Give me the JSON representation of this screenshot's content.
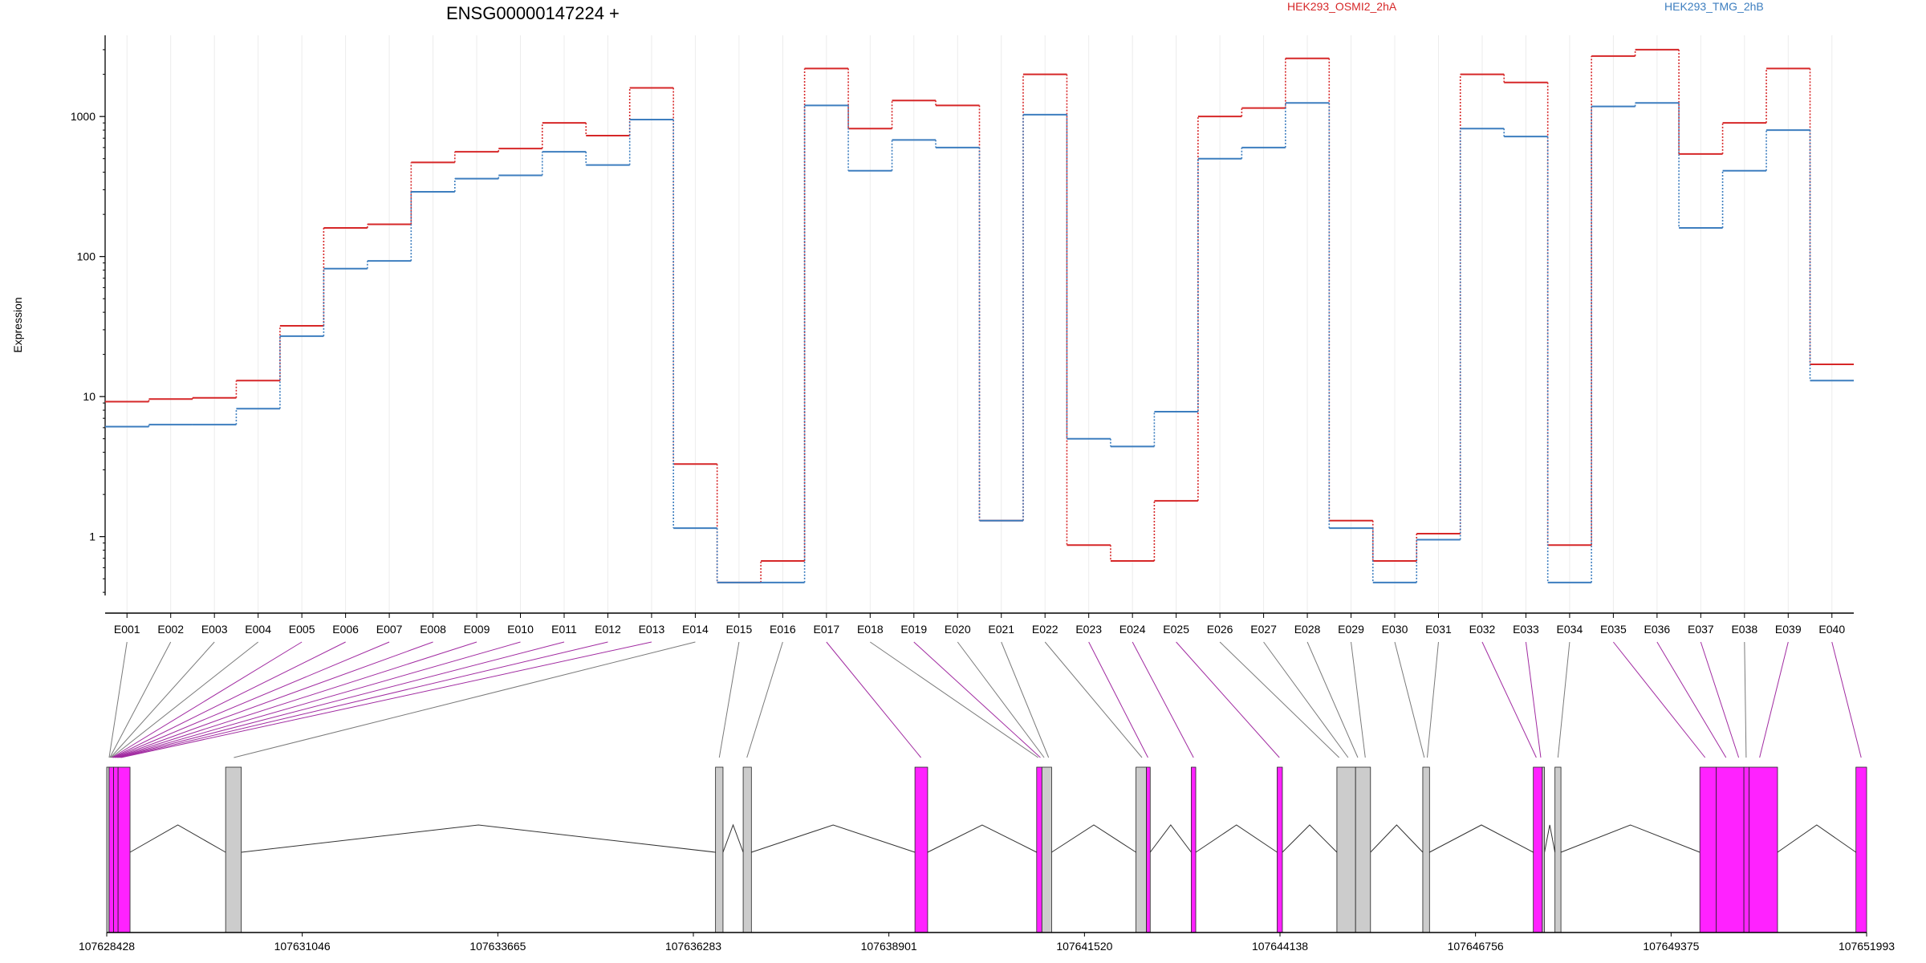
{
  "chart_data": {
    "type": "line",
    "title": "ENSG00000147224 +",
    "ylabel": "Expression",
    "yscale": "log",
    "ylim": [
      0.38,
      3800
    ],
    "yticks": [
      "1",
      "10",
      "100",
      "1000"
    ],
    "ytick_values": [
      1,
      10,
      100,
      1000
    ],
    "grid": true,
    "legend_position": "top",
    "colors": {
      "highlight": "#ff22ff",
      "plain": "#cccccc",
      "intron": "#333333"
    },
    "categories": [
      "E001",
      "E002",
      "E003",
      "E004",
      "E005",
      "E006",
      "E007",
      "E008",
      "E009",
      "E010",
      "E011",
      "E012",
      "E013",
      "E014",
      "E015",
      "E016",
      "E017",
      "E018",
      "E019",
      "E020",
      "E021",
      "E022",
      "E023",
      "E024",
      "E025",
      "E026",
      "E027",
      "E028",
      "E029",
      "E030",
      "E031",
      "E032",
      "E033",
      "E034",
      "E035",
      "E036",
      "E037",
      "E038",
      "E039",
      "E040"
    ],
    "series": [
      {
        "name": "HEK293_OSMI2_2hA",
        "color": "#d62728",
        "values": [
          9.2,
          9.6,
          9.8,
          13,
          32,
          160,
          170,
          470,
          560,
          590,
          900,
          730,
          1600,
          3.3,
          0.47,
          0.67,
          2200,
          820,
          1300,
          1200,
          1.3,
          2000,
          0.87,
          0.67,
          1.8,
          1000,
          1150,
          2600,
          1.3,
          0.67,
          1.05,
          2000,
          1750,
          0.87,
          2700,
          3000,
          540,
          900,
          2200,
          17
        ]
      },
      {
        "name": "HEK293_TMG_2hB",
        "color": "#3d7ebf",
        "values": [
          6.1,
          6.3,
          6.3,
          8.2,
          27,
          82,
          93,
          290,
          360,
          380,
          560,
          450,
          950,
          1.15,
          0.47,
          0.47,
          1200,
          410,
          680,
          600,
          1.3,
          1030,
          5.0,
          4.4,
          7.8,
          500,
          600,
          1250,
          1.15,
          0.47,
          0.95,
          820,
          720,
          0.47,
          1180,
          1250,
          160,
          410,
          800,
          13
        ]
      }
    ],
    "gene_model": {
      "coordinates": [
        "107628428",
        "107631046",
        "107633665",
        "107636283",
        "107638901",
        "107641520",
        "107644138",
        "107646756",
        "107649375",
        "107651993"
      ],
      "coord_range": [
        107628428,
        107651993
      ],
      "exons": [
        {
          "start": 107628428,
          "end": 107628460,
          "highlight": false
        },
        {
          "start": 107628460,
          "end": 107628520,
          "highlight": true
        },
        {
          "start": 107628520,
          "end": 107628580,
          "highlight": true
        },
        {
          "start": 107628580,
          "end": 107628740,
          "highlight": true
        },
        {
          "start": 107630020,
          "end": 107630230,
          "highlight": false
        },
        {
          "start": 107636580,
          "end": 107636680,
          "highlight": false
        },
        {
          "start": 107636950,
          "end": 107637060,
          "highlight": false
        },
        {
          "start": 107639250,
          "end": 107639420,
          "highlight": true
        },
        {
          "start": 107640880,
          "end": 107640950,
          "highlight": true
        },
        {
          "start": 107640950,
          "end": 107641080,
          "highlight": false
        },
        {
          "start": 107642210,
          "end": 107642350,
          "highlight": false
        },
        {
          "start": 107642350,
          "end": 107642400,
          "highlight": true
        },
        {
          "start": 107642950,
          "end": 107643010,
          "highlight": true
        },
        {
          "start": 107644100,
          "end": 107644170,
          "highlight": true
        },
        {
          "start": 107644900,
          "end": 107645150,
          "highlight": false
        },
        {
          "start": 107645150,
          "end": 107645350,
          "highlight": false
        },
        {
          "start": 107646050,
          "end": 107646140,
          "highlight": false
        },
        {
          "start": 107647530,
          "end": 107647650,
          "highlight": true
        },
        {
          "start": 107647650,
          "end": 107647680,
          "highlight": false
        },
        {
          "start": 107647820,
          "end": 107647900,
          "highlight": false
        },
        {
          "start": 107649760,
          "end": 107649980,
          "highlight": true
        },
        {
          "start": 107649980,
          "end": 107650350,
          "highlight": true
        },
        {
          "start": 107650350,
          "end": 107650420,
          "highlight": true
        },
        {
          "start": 107650420,
          "end": 107650800,
          "highlight": true
        },
        {
          "start": 107651850,
          "end": 107651993,
          "highlight": true
        }
      ],
      "exon_targets": [
        {
          "coord": 107628460,
          "highlight": false
        },
        {
          "coord": 107628470,
          "highlight": false
        },
        {
          "coord": 107628480,
          "highlight": false
        },
        {
          "coord": 107628490,
          "highlight": false
        },
        {
          "coord": 107628500,
          "highlight": true
        },
        {
          "coord": 107628510,
          "highlight": true
        },
        {
          "coord": 107628520,
          "highlight": true
        },
        {
          "coord": 107628535,
          "highlight": true
        },
        {
          "coord": 107628550,
          "highlight": true
        },
        {
          "coord": 107628565,
          "highlight": true
        },
        {
          "coord": 107628580,
          "highlight": true
        },
        {
          "coord": 107628600,
          "highlight": true
        },
        {
          "coord": 107628620,
          "highlight": true
        },
        {
          "coord": 107630130,
          "highlight": false
        },
        {
          "coord": 107636630,
          "highlight": false
        },
        {
          "coord": 107637000,
          "highlight": false
        },
        {
          "coord": 107639330,
          "highlight": true
        },
        {
          "coord": 107640900,
          "highlight": false
        },
        {
          "coord": 107640930,
          "highlight": true
        },
        {
          "coord": 107640980,
          "highlight": false
        },
        {
          "coord": 107641040,
          "highlight": false
        },
        {
          "coord": 107642290,
          "highlight": false
        },
        {
          "coord": 107642370,
          "highlight": true
        },
        {
          "coord": 107642980,
          "highlight": true
        },
        {
          "coord": 107644130,
          "highlight": true
        },
        {
          "coord": 107644930,
          "highlight": false
        },
        {
          "coord": 107645050,
          "highlight": false
        },
        {
          "coord": 107645180,
          "highlight": false
        },
        {
          "coord": 107645280,
          "highlight": false
        },
        {
          "coord": 107646070,
          "highlight": false
        },
        {
          "coord": 107646110,
          "highlight": false
        },
        {
          "coord": 107647570,
          "highlight": true
        },
        {
          "coord": 107647630,
          "highlight": true
        },
        {
          "coord": 107647860,
          "highlight": false
        },
        {
          "coord": 107649830,
          "highlight": true
        },
        {
          "coord": 107650110,
          "highlight": true
        },
        {
          "coord": 107650280,
          "highlight": true
        },
        {
          "coord": 107650380,
          "highlight": false
        },
        {
          "coord": 107650560,
          "highlight": true
        },
        {
          "coord": 107651920,
          "highlight": true
        }
      ]
    }
  }
}
